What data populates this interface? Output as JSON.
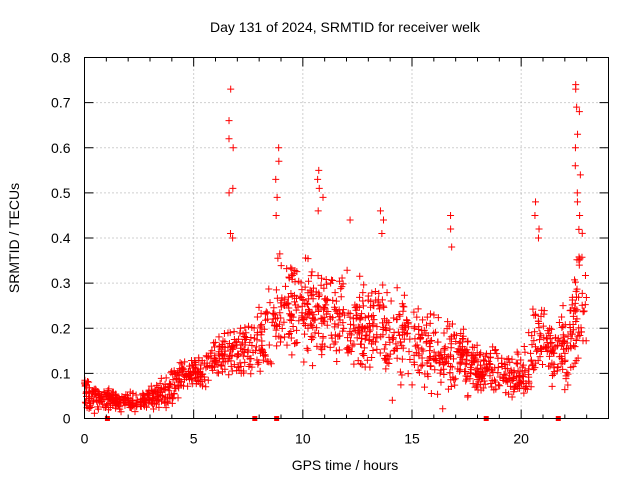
{
  "chart_data": {
    "type": "scatter",
    "title": "Day 131 of 2024, SRMTID for receiver welk",
    "xlabel": "GPS time / hours",
    "ylabel": "SRMTID / TECUs",
    "xlim": [
      0,
      24
    ],
    "ylim": [
      0,
      0.8
    ],
    "x_ticks": [
      0,
      5,
      10,
      15,
      20
    ],
    "x_tick_labels": [
      "0",
      "5",
      "10",
      "15",
      "20"
    ],
    "y_ticks": [
      0,
      0.1,
      0.2,
      0.3,
      0.4,
      0.5,
      0.6,
      0.7,
      0.8
    ],
    "y_tick_labels": [
      "0",
      "0.1",
      "0.2",
      "0.3",
      "0.4",
      "0.5",
      "0.6",
      "0.7",
      "0.8"
    ],
    "grid": true,
    "marker": "+",
    "color": "#ff0000",
    "series": [
      {
        "name": "SRMTID",
        "envelope": {
          "hours": [
            0,
            0.5,
            1,
            1.5,
            2,
            2.5,
            3,
            3.5,
            4,
            4.5,
            5,
            5.5,
            6,
            6.5,
            7,
            7.5,
            8,
            8.5,
            9,
            9.5,
            10,
            10.5,
            11,
            11.5,
            12,
            12.5,
            13,
            13.5,
            14,
            14.5,
            15,
            15.5,
            16,
            16.5,
            17,
            17.5,
            18,
            18.5,
            19,
            19.5,
            20,
            20.5,
            21,
            21.5,
            22,
            22.5,
            23
          ],
          "typical": [
            0.06,
            0.05,
            0.045,
            0.04,
            0.04,
            0.04,
            0.045,
            0.05,
            0.07,
            0.1,
            0.1,
            0.11,
            0.13,
            0.14,
            0.15,
            0.15,
            0.16,
            0.2,
            0.25,
            0.25,
            0.24,
            0.24,
            0.23,
            0.22,
            0.21,
            0.2,
            0.2,
            0.2,
            0.19,
            0.18,
            0.18,
            0.17,
            0.15,
            0.13,
            0.15,
            0.13,
            0.12,
            0.11,
            0.1,
            0.09,
            0.09,
            0.15,
            0.2,
            0.14,
            0.15,
            0.24,
            0.27
          ],
          "spread": [
            0.03,
            0.02,
            0.018,
            0.015,
            0.015,
            0.015,
            0.018,
            0.02,
            0.025,
            0.02,
            0.02,
            0.03,
            0.03,
            0.03,
            0.04,
            0.04,
            0.05,
            0.07,
            0.08,
            0.07,
            0.07,
            0.07,
            0.07,
            0.07,
            0.07,
            0.07,
            0.07,
            0.07,
            0.07,
            0.07,
            0.07,
            0.06,
            0.06,
            0.05,
            0.06,
            0.05,
            0.04,
            0.04,
            0.04,
            0.03,
            0.03,
            0.06,
            0.08,
            0.05,
            0.07,
            0.09,
            0.1
          ]
        },
        "peaks": [
          {
            "hour": 6.7,
            "values": [
              0.73,
              0.66,
              0.62,
              0.6,
              0.51,
              0.5,
              0.41,
              0.4
            ]
          },
          {
            "hour": 8.8,
            "values": [
              0.6,
              0.57,
              0.53,
              0.49,
              0.45
            ]
          },
          {
            "hour": 10.8,
            "values": [
              0.55,
              0.53,
              0.51,
              0.49,
              0.46
            ]
          },
          {
            "hour": 12.2,
            "values": [
              0.44
            ]
          },
          {
            "hour": 13.6,
            "values": [
              0.46,
              0.44,
              0.41
            ]
          },
          {
            "hour": 16.8,
            "values": [
              0.45,
              0.42,
              0.38
            ]
          },
          {
            "hour": 20.7,
            "values": [
              0.48,
              0.45,
              0.42,
              0.4
            ]
          },
          {
            "hour": 22.6,
            "values": [
              0.74,
              0.73,
              0.69,
              0.68,
              0.63,
              0.6,
              0.56,
              0.54,
              0.5,
              0.48,
              0.45
            ]
          }
        ]
      }
    ],
    "baseline_markers_hours": [
      1.05,
      7.8,
      8.8,
      18.4,
      21.7
    ]
  }
}
